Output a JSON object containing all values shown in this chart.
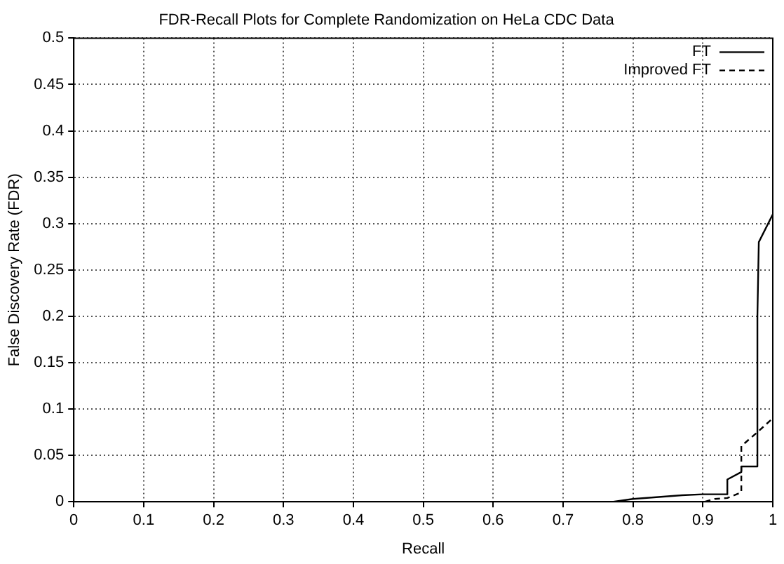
{
  "chart_data": {
    "type": "line",
    "title": "FDR-Recall Plots for Complete Randomization on HeLa CDC Data",
    "xlabel": "Recall",
    "ylabel": "False Discovery Rate (FDR)",
    "xlim": [
      0,
      1
    ],
    "xticks": [
      0,
      0.1,
      0.2,
      0.3,
      0.4,
      0.5,
      0.6,
      0.7,
      0.8,
      0.9,
      1
    ],
    "ylim": [
      0,
      0.5
    ],
    "yticks": [
      0,
      0.05,
      0.1,
      0.15,
      0.2,
      0.25,
      0.3,
      0.35,
      0.4,
      0.45,
      0.5
    ],
    "grid": true,
    "legend": "top right",
    "marker": "none",
    "series": [
      {
        "name": "FT",
        "color": "#000000",
        "line_style": "solid",
        "x": [
          0,
          0.772,
          0.8,
          0.87,
          0.9,
          0.935,
          0.935,
          0.955,
          0.955,
          0.978,
          0.978,
          0.98,
          1
        ],
        "values": [
          0,
          0,
          0.003,
          0.007,
          0.008,
          0.008,
          0.024,
          0.032,
          0.038,
          0.038,
          0.2,
          0.28,
          0.31
        ]
      },
      {
        "name": "Improved FT",
        "color": "#000000",
        "line_style": "dashed",
        "x": [
          0.903,
          0.917,
          0.935,
          0.955,
          0.955,
          0.978,
          1
        ],
        "values": [
          0,
          0.003,
          0.004,
          0.01,
          0.06,
          0.075,
          0.09
        ]
      }
    ]
  }
}
